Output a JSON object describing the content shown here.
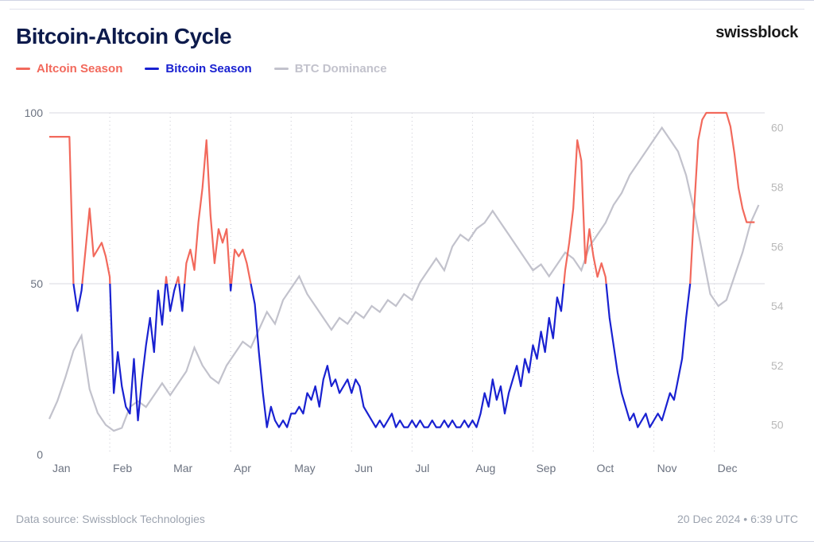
{
  "title": "Bitcoin-Altcoin Cycle",
  "brand": "swissblock",
  "footer_source": "Data source: Swissblock Technologies",
  "footer_timestamp": "20 Dec 2024 • 6:39 UTC",
  "legend": {
    "altcoin": {
      "label": "Altcoin Season",
      "color": "#f2695c"
    },
    "bitcoin": {
      "label": "Bitcoin Season",
      "color": "#1921d1"
    },
    "dominance": {
      "label": "BTC Dominance",
      "color": "#c2c2cc"
    }
  },
  "chart": {
    "type": "line",
    "background_color": "#ffffff",
    "title_fontsize": 28,
    "label_fontsize": 14,
    "left_axis": {
      "min": 0,
      "max": 100,
      "ticks": [
        0,
        50,
        100
      ],
      "color": "#6b7280"
    },
    "right_axis": {
      "min": 49,
      "max": 60.5,
      "ticks": [
        50,
        52,
        54,
        56,
        58,
        60
      ],
      "color": "#b8b8b8"
    },
    "x_axis": {
      "labels": [
        "Jan",
        "Feb",
        "Mar",
        "Apr",
        "May",
        "Jun",
        "Jul",
        "Aug",
        "Sep",
        "Oct",
        "Nov",
        "Dec"
      ],
      "positions": [
        0,
        30,
        60,
        90,
        120,
        150,
        180,
        210,
        240,
        270,
        300,
        330
      ],
      "max": 355
    },
    "line_width": 2.2,
    "baseline_y": 50,
    "grid_color": "#d8d8e0",
    "grid_dot_color": "#c8c8d0",
    "series": {
      "cycle": {
        "axis": "left",
        "data": [
          [
            0,
            93
          ],
          [
            3,
            93
          ],
          [
            5,
            93
          ],
          [
            8,
            93
          ],
          [
            10,
            93
          ],
          [
            12,
            50
          ],
          [
            14,
            42
          ],
          [
            16,
            48
          ],
          [
            18,
            60
          ],
          [
            20,
            72
          ],
          [
            22,
            58
          ],
          [
            24,
            60
          ],
          [
            26,
            62
          ],
          [
            28,
            58
          ],
          [
            30,
            52
          ],
          [
            32,
            18
          ],
          [
            34,
            30
          ],
          [
            36,
            20
          ],
          [
            38,
            14
          ],
          [
            40,
            12
          ],
          [
            42,
            28
          ],
          [
            44,
            10
          ],
          [
            46,
            22
          ],
          [
            48,
            32
          ],
          [
            50,
            40
          ],
          [
            52,
            30
          ],
          [
            54,
            48
          ],
          [
            56,
            38
          ],
          [
            58,
            52
          ],
          [
            60,
            42
          ],
          [
            62,
            48
          ],
          [
            64,
            52
          ],
          [
            66,
            42
          ],
          [
            68,
            56
          ],
          [
            70,
            60
          ],
          [
            72,
            54
          ],
          [
            74,
            68
          ],
          [
            76,
            78
          ],
          [
            78,
            92
          ],
          [
            80,
            70
          ],
          [
            82,
            56
          ],
          [
            84,
            66
          ],
          [
            86,
            62
          ],
          [
            88,
            66
          ],
          [
            90,
            48
          ],
          [
            92,
            60
          ],
          [
            94,
            58
          ],
          [
            96,
            60
          ],
          [
            98,
            56
          ],
          [
            100,
            50
          ],
          [
            102,
            44
          ],
          [
            104,
            30
          ],
          [
            106,
            18
          ],
          [
            108,
            8
          ],
          [
            110,
            14
          ],
          [
            112,
            10
          ],
          [
            114,
            8
          ],
          [
            116,
            10
          ],
          [
            118,
            8
          ],
          [
            120,
            12
          ],
          [
            122,
            12
          ],
          [
            124,
            14
          ],
          [
            126,
            12
          ],
          [
            128,
            18
          ],
          [
            130,
            16
          ],
          [
            132,
            20
          ],
          [
            134,
            14
          ],
          [
            136,
            22
          ],
          [
            138,
            26
          ],
          [
            140,
            20
          ],
          [
            142,
            22
          ],
          [
            144,
            18
          ],
          [
            146,
            20
          ],
          [
            148,
            22
          ],
          [
            150,
            18
          ],
          [
            152,
            22
          ],
          [
            154,
            20
          ],
          [
            156,
            14
          ],
          [
            158,
            12
          ],
          [
            160,
            10
          ],
          [
            162,
            8
          ],
          [
            164,
            10
          ],
          [
            166,
            8
          ],
          [
            168,
            10
          ],
          [
            170,
            12
          ],
          [
            172,
            8
          ],
          [
            174,
            10
          ],
          [
            176,
            8
          ],
          [
            178,
            8
          ],
          [
            180,
            10
          ],
          [
            182,
            8
          ],
          [
            184,
            10
          ],
          [
            186,
            8
          ],
          [
            188,
            8
          ],
          [
            190,
            10
          ],
          [
            192,
            8
          ],
          [
            194,
            8
          ],
          [
            196,
            10
          ],
          [
            198,
            8
          ],
          [
            200,
            10
          ],
          [
            202,
            8
          ],
          [
            204,
            8
          ],
          [
            206,
            10
          ],
          [
            208,
            8
          ],
          [
            210,
            10
          ],
          [
            212,
            8
          ],
          [
            214,
            12
          ],
          [
            216,
            18
          ],
          [
            218,
            14
          ],
          [
            220,
            22
          ],
          [
            222,
            16
          ],
          [
            224,
            20
          ],
          [
            226,
            12
          ],
          [
            228,
            18
          ],
          [
            230,
            22
          ],
          [
            232,
            26
          ],
          [
            234,
            20
          ],
          [
            236,
            28
          ],
          [
            238,
            24
          ],
          [
            240,
            32
          ],
          [
            242,
            28
          ],
          [
            244,
            36
          ],
          [
            246,
            30
          ],
          [
            248,
            40
          ],
          [
            250,
            34
          ],
          [
            252,
            46
          ],
          [
            254,
            42
          ],
          [
            256,
            54
          ],
          [
            258,
            62
          ],
          [
            260,
            72
          ],
          [
            262,
            92
          ],
          [
            264,
            86
          ],
          [
            266,
            56
          ],
          [
            268,
            66
          ],
          [
            270,
            58
          ],
          [
            272,
            52
          ],
          [
            274,
            56
          ],
          [
            276,
            52
          ],
          [
            278,
            40
          ],
          [
            280,
            32
          ],
          [
            282,
            24
          ],
          [
            284,
            18
          ],
          [
            286,
            14
          ],
          [
            288,
            10
          ],
          [
            290,
            12
          ],
          [
            292,
            8
          ],
          [
            294,
            10
          ],
          [
            296,
            12
          ],
          [
            298,
            8
          ],
          [
            300,
            10
          ],
          [
            302,
            12
          ],
          [
            304,
            10
          ],
          [
            306,
            14
          ],
          [
            308,
            18
          ],
          [
            310,
            16
          ],
          [
            312,
            22
          ],
          [
            314,
            28
          ],
          [
            316,
            40
          ],
          [
            318,
            50
          ],
          [
            320,
            72
          ],
          [
            322,
            92
          ],
          [
            324,
            98
          ],
          [
            326,
            100
          ],
          [
            328,
            100
          ],
          [
            330,
            100
          ],
          [
            332,
            100
          ],
          [
            334,
            100
          ],
          [
            336,
            100
          ],
          [
            338,
            96
          ],
          [
            340,
            88
          ],
          [
            342,
            78
          ],
          [
            344,
            72
          ],
          [
            346,
            68
          ],
          [
            348,
            68
          ],
          [
            350,
            68
          ]
        ]
      },
      "dominance": {
        "axis": "right",
        "color": "#c2c2cc",
        "data": [
          [
            0,
            50.2
          ],
          [
            4,
            50.8
          ],
          [
            8,
            51.6
          ],
          [
            12,
            52.5
          ],
          [
            16,
            53.0
          ],
          [
            20,
            51.2
          ],
          [
            24,
            50.4
          ],
          [
            28,
            50.0
          ],
          [
            32,
            49.8
          ],
          [
            36,
            49.9
          ],
          [
            40,
            50.6
          ],
          [
            44,
            50.8
          ],
          [
            48,
            50.6
          ],
          [
            52,
            51.0
          ],
          [
            56,
            51.4
          ],
          [
            60,
            51.0
          ],
          [
            64,
            51.4
          ],
          [
            68,
            51.8
          ],
          [
            72,
            52.6
          ],
          [
            76,
            52.0
          ],
          [
            80,
            51.6
          ],
          [
            84,
            51.4
          ],
          [
            88,
            52.0
          ],
          [
            92,
            52.4
          ],
          [
            96,
            52.8
          ],
          [
            100,
            52.6
          ],
          [
            104,
            53.2
          ],
          [
            108,
            53.8
          ],
          [
            112,
            53.4
          ],
          [
            116,
            54.2
          ],
          [
            120,
            54.6
          ],
          [
            124,
            55.0
          ],
          [
            128,
            54.4
          ],
          [
            132,
            54.0
          ],
          [
            136,
            53.6
          ],
          [
            140,
            53.2
          ],
          [
            144,
            53.6
          ],
          [
            148,
            53.4
          ],
          [
            152,
            53.8
          ],
          [
            156,
            53.6
          ],
          [
            160,
            54.0
          ],
          [
            164,
            53.8
          ],
          [
            168,
            54.2
          ],
          [
            172,
            54.0
          ],
          [
            176,
            54.4
          ],
          [
            180,
            54.2
          ],
          [
            184,
            54.8
          ],
          [
            188,
            55.2
          ],
          [
            192,
            55.6
          ],
          [
            196,
            55.2
          ],
          [
            200,
            56.0
          ],
          [
            204,
            56.4
          ],
          [
            208,
            56.2
          ],
          [
            212,
            56.6
          ],
          [
            216,
            56.8
          ],
          [
            220,
            57.2
          ],
          [
            224,
            56.8
          ],
          [
            228,
            56.4
          ],
          [
            232,
            56.0
          ],
          [
            236,
            55.6
          ],
          [
            240,
            55.2
          ],
          [
            244,
            55.4
          ],
          [
            248,
            55.0
          ],
          [
            252,
            55.4
          ],
          [
            256,
            55.8
          ],
          [
            260,
            55.6
          ],
          [
            264,
            55.2
          ],
          [
            268,
            56.0
          ],
          [
            272,
            56.4
          ],
          [
            276,
            56.8
          ],
          [
            280,
            57.4
          ],
          [
            284,
            57.8
          ],
          [
            288,
            58.4
          ],
          [
            292,
            58.8
          ],
          [
            296,
            59.2
          ],
          [
            300,
            59.6
          ],
          [
            304,
            60.0
          ],
          [
            308,
            59.6
          ],
          [
            312,
            59.2
          ],
          [
            316,
            58.4
          ],
          [
            320,
            57.2
          ],
          [
            324,
            55.8
          ],
          [
            328,
            54.4
          ],
          [
            332,
            54.0
          ],
          [
            336,
            54.2
          ],
          [
            340,
            55.0
          ],
          [
            344,
            55.8
          ],
          [
            348,
            56.8
          ],
          [
            352,
            57.4
          ]
        ]
      }
    }
  }
}
